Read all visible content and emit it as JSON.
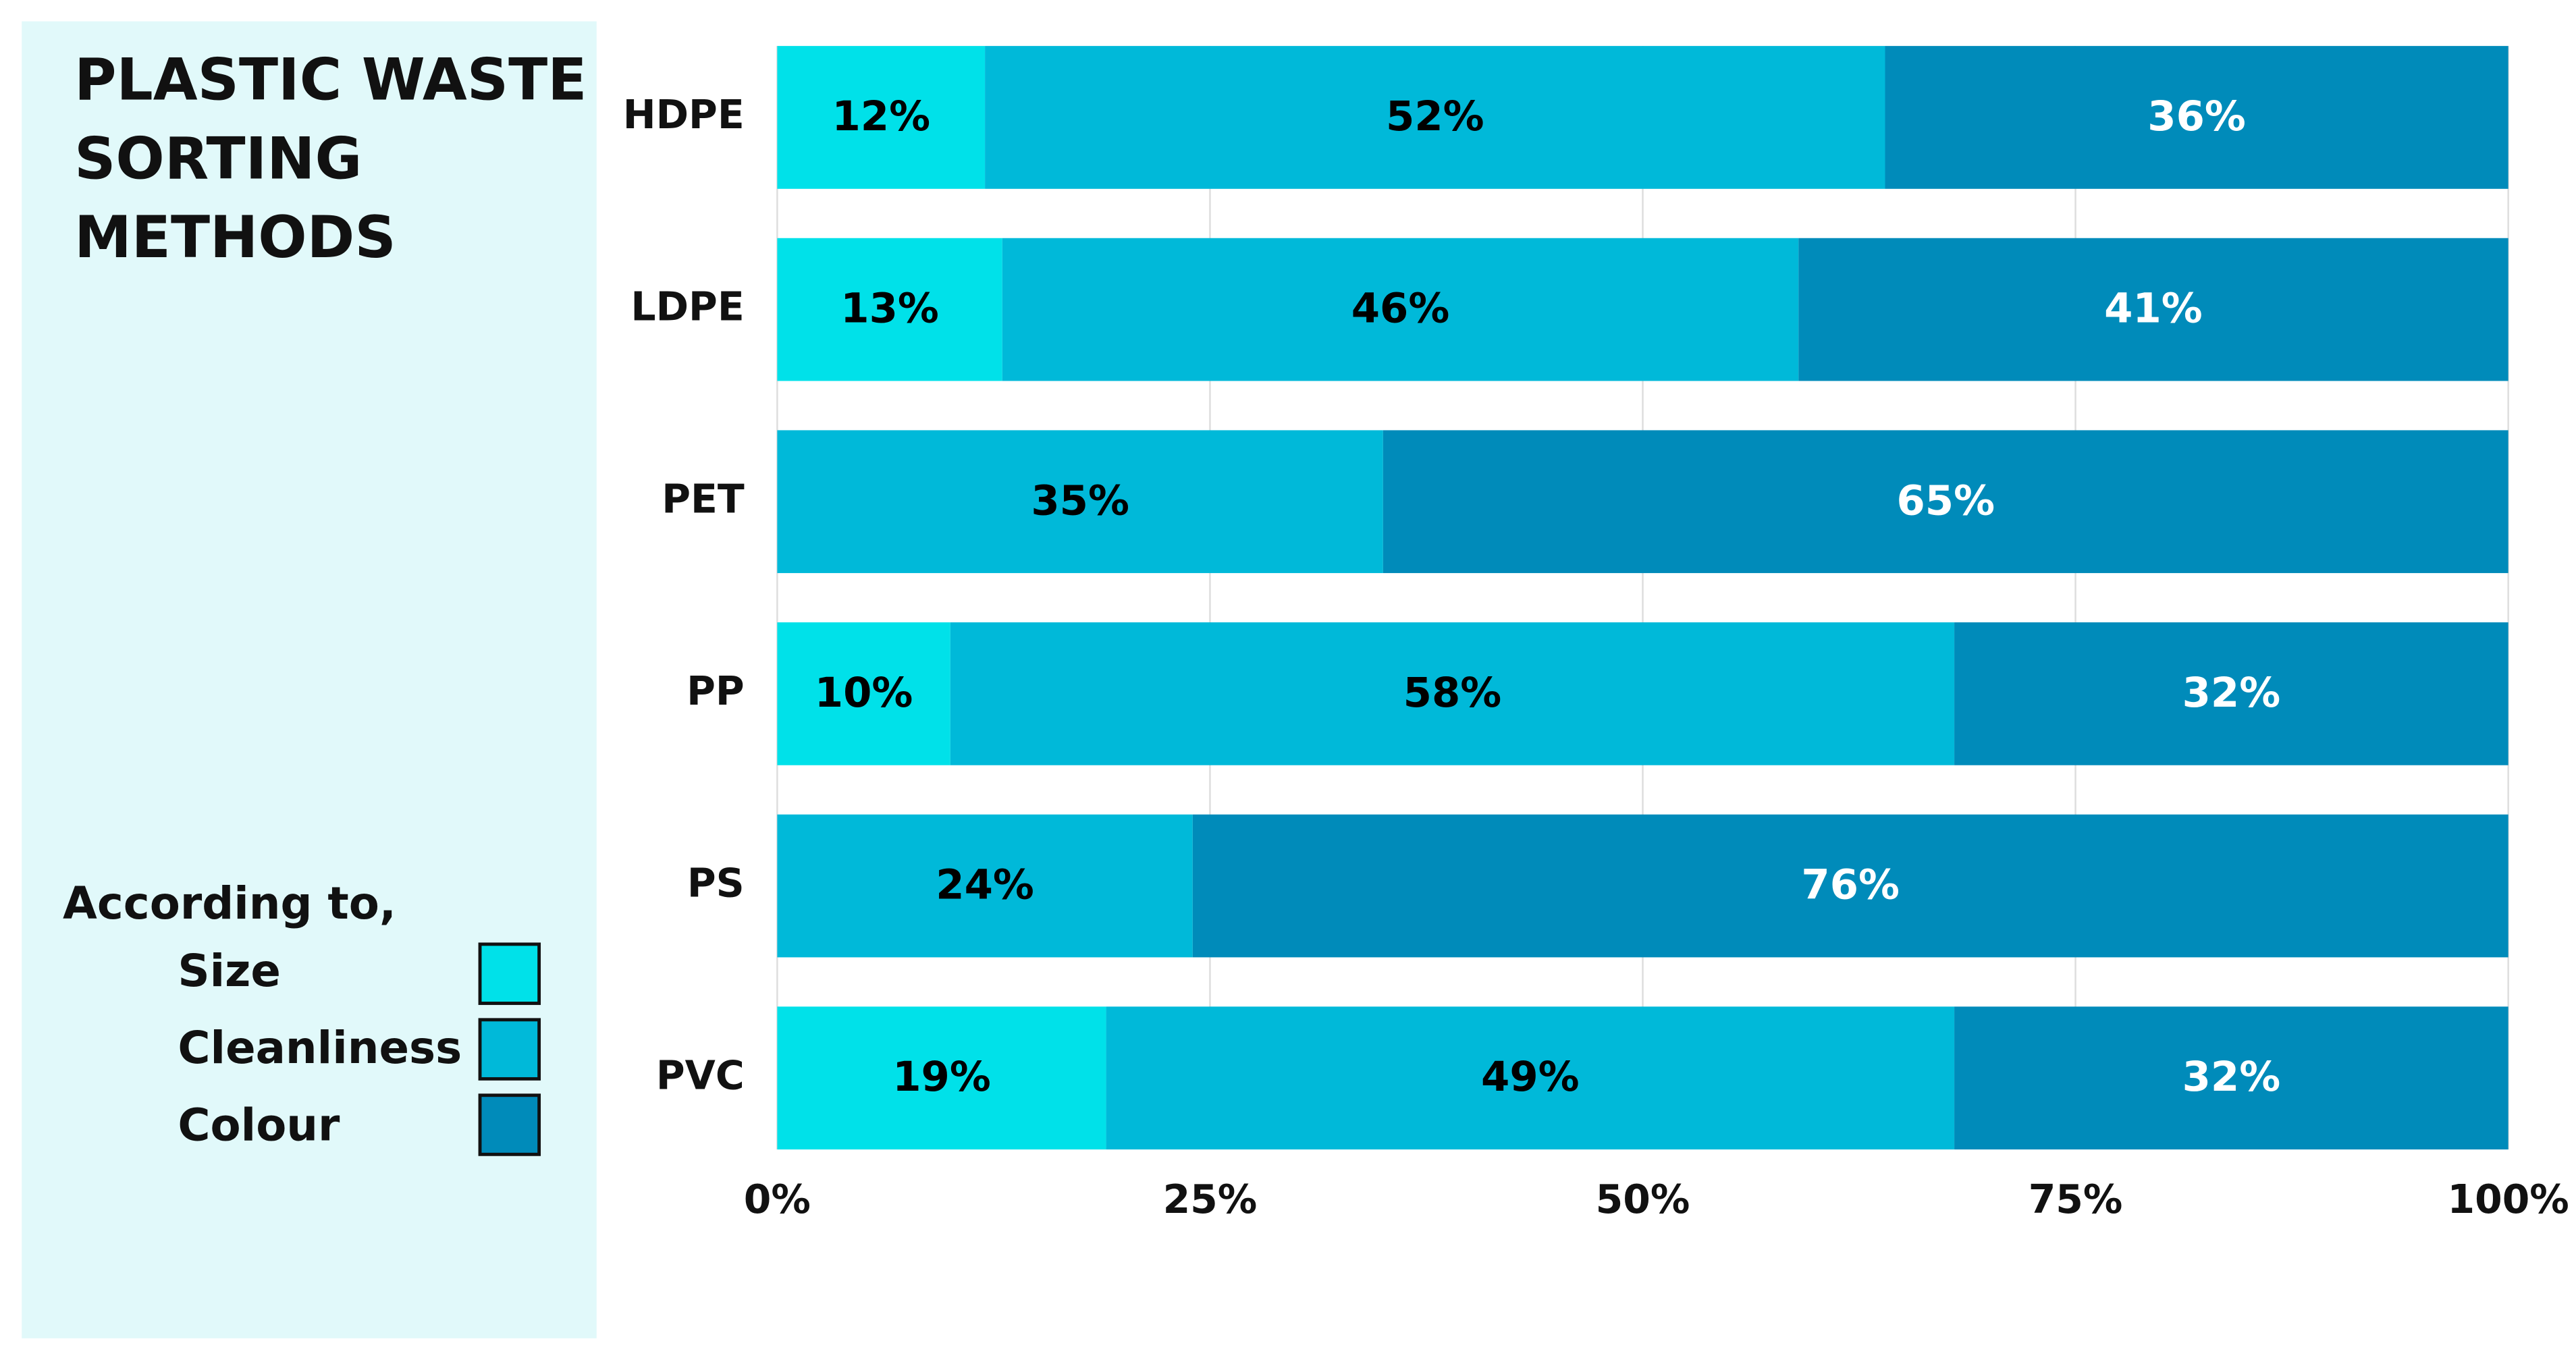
{
  "chart_data": {
    "type": "stacked_bar_horizontal",
    "title": [
      "PLASTIC WASTE",
      "SORTING",
      "METHODS"
    ],
    "legend_title": "According to,",
    "categories": [
      "HDPE",
      "LDPE",
      "PET",
      "PP",
      "PS",
      "PVC"
    ],
    "series": [
      {
        "name": "Size",
        "color": "#00e1e9",
        "label_color": "#000000",
        "values": [
          12,
          13,
          null,
          10,
          null,
          19
        ],
        "value_labels": [
          "12%",
          "13%",
          null,
          "10%",
          null,
          "19%"
        ]
      },
      {
        "name": "Cleanliness",
        "color": "#00b9d9",
        "label_color": "#000000",
        "values": [
          52,
          46,
          35,
          58,
          24,
          49
        ],
        "value_labels": [
          "52%",
          "46%",
          "35%",
          "58%",
          "24%",
          "49%"
        ]
      },
      {
        "name": "Colour",
        "color": "#008bba",
        "label_color": "#ffffff",
        "values": [
          36,
          41,
          65,
          32,
          76,
          32
        ],
        "value_labels": [
          "36%",
          "41%",
          "65%",
          "32%",
          "76%",
          "32%"
        ]
      }
    ],
    "xlim": [
      0,
      100
    ],
    "xticks": [
      {
        "value": 0,
        "label": "0%"
      },
      {
        "value": 25,
        "label": "25%"
      },
      {
        "value": 50,
        "label": "50%"
      },
      {
        "value": 75,
        "label": "75%"
      },
      {
        "value": 100,
        "label": "100%"
      }
    ],
    "grid": true
  }
}
